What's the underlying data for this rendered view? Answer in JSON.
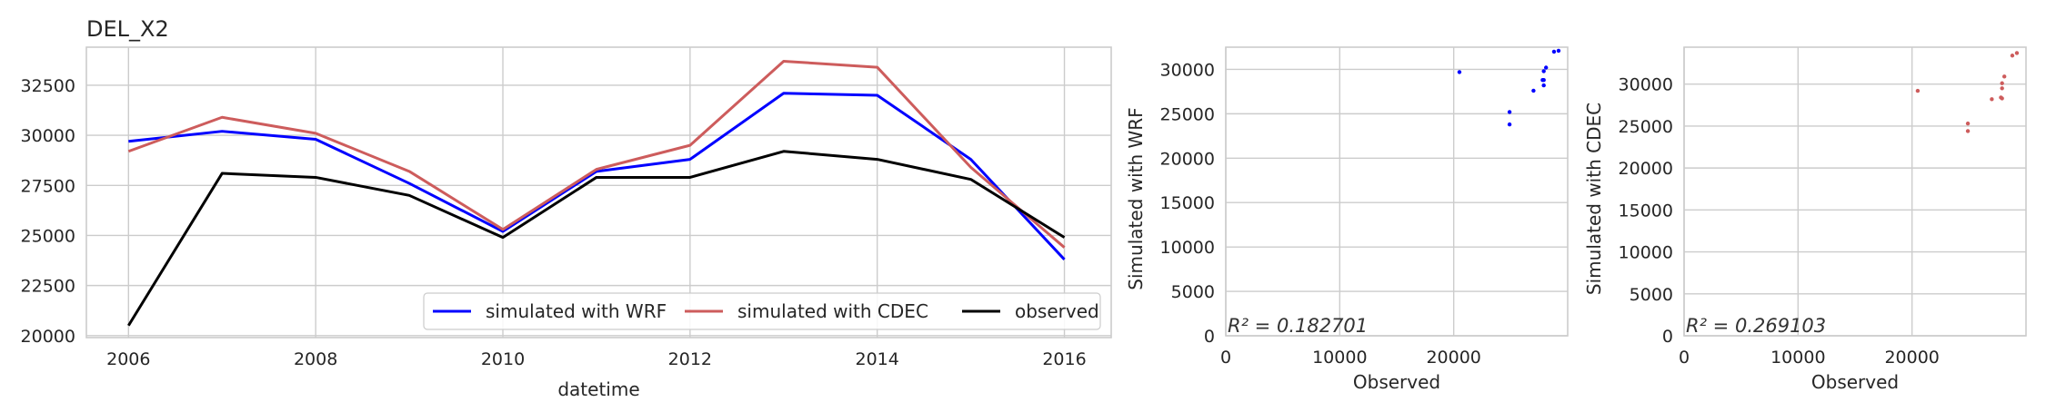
{
  "chart_data": [
    {
      "type": "line",
      "title": "DEL_X2",
      "xlabel": "datetime",
      "ylabel": "",
      "x": [
        2006,
        2007,
        2008,
        2009,
        2010,
        2011,
        2012,
        2013,
        2014,
        2015,
        2016
      ],
      "xlim": [
        2005.55,
        2016.5
      ],
      "ylim": [
        19900,
        34400
      ],
      "xticks": [
        "2006",
        "2008",
        "2010",
        "2012",
        "2014",
        "2016"
      ],
      "yticks": [
        "20000",
        "22500",
        "25000",
        "27500",
        "30000",
        "32500"
      ],
      "grid": true,
      "legend_position": "lower-right",
      "series": [
        {
          "name": "simulated with WRF",
          "color": "#0000ff",
          "values": [
            29700,
            30200,
            29800,
            27600,
            25200,
            28200,
            28800,
            32100,
            32000,
            28800,
            23800
          ]
        },
        {
          "name": "simulated with CDEC",
          "color": "#cd5c5c",
          "values": [
            29200,
            30900,
            30100,
            28200,
            25300,
            28300,
            29500,
            33700,
            33400,
            28400,
            24400
          ]
        },
        {
          "name": "observed",
          "color": "#000000",
          "values": [
            20500,
            28100,
            27900,
            27000,
            24900,
            27900,
            27900,
            29200,
            28800,
            27800,
            24900
          ]
        }
      ]
    },
    {
      "type": "scatter",
      "title": "",
      "xlabel": "Observed",
      "ylabel": "Simulated with WRF",
      "xlim": [
        0,
        30000
      ],
      "ylim": [
        0,
        32500
      ],
      "xticks": [
        "0",
        "10000",
        "20000"
      ],
      "yticks": [
        "0",
        "5000",
        "10000",
        "15000",
        "20000",
        "25000",
        "30000"
      ],
      "annotation": "R² = 0.182701",
      "grid": true,
      "color": "#0000ff",
      "points": [
        {
          "x": 20500,
          "y": 29700
        },
        {
          "x": 28100,
          "y": 30200
        },
        {
          "x": 27900,
          "y": 29800
        },
        {
          "x": 27000,
          "y": 27600
        },
        {
          "x": 24900,
          "y": 25200
        },
        {
          "x": 27900,
          "y": 28200
        },
        {
          "x": 27900,
          "y": 28800
        },
        {
          "x": 29200,
          "y": 32100
        },
        {
          "x": 28800,
          "y": 32000
        },
        {
          "x": 27800,
          "y": 28800
        },
        {
          "x": 24900,
          "y": 23800
        }
      ]
    },
    {
      "type": "scatter",
      "title": "",
      "xlabel": "Observed",
      "ylabel": "Simulated with CDEC",
      "xlim": [
        0,
        30000
      ],
      "ylim": [
        0,
        34400
      ],
      "xticks": [
        "0",
        "10000",
        "20000"
      ],
      "yticks": [
        "0",
        "5000",
        "10000",
        "15000",
        "20000",
        "25000",
        "30000"
      ],
      "annotation": "R² = 0.269103",
      "grid": true,
      "color": "#cd5c5c",
      "points": [
        {
          "x": 20500,
          "y": 29200
        },
        {
          "x": 28100,
          "y": 30900
        },
        {
          "x": 27900,
          "y": 30100
        },
        {
          "x": 27000,
          "y": 28200
        },
        {
          "x": 24900,
          "y": 25300
        },
        {
          "x": 27900,
          "y": 28300
        },
        {
          "x": 27900,
          "y": 29500
        },
        {
          "x": 29200,
          "y": 33700
        },
        {
          "x": 28800,
          "y": 33400
        },
        {
          "x": 27800,
          "y": 28400
        },
        {
          "x": 24900,
          "y": 24400
        }
      ]
    }
  ]
}
